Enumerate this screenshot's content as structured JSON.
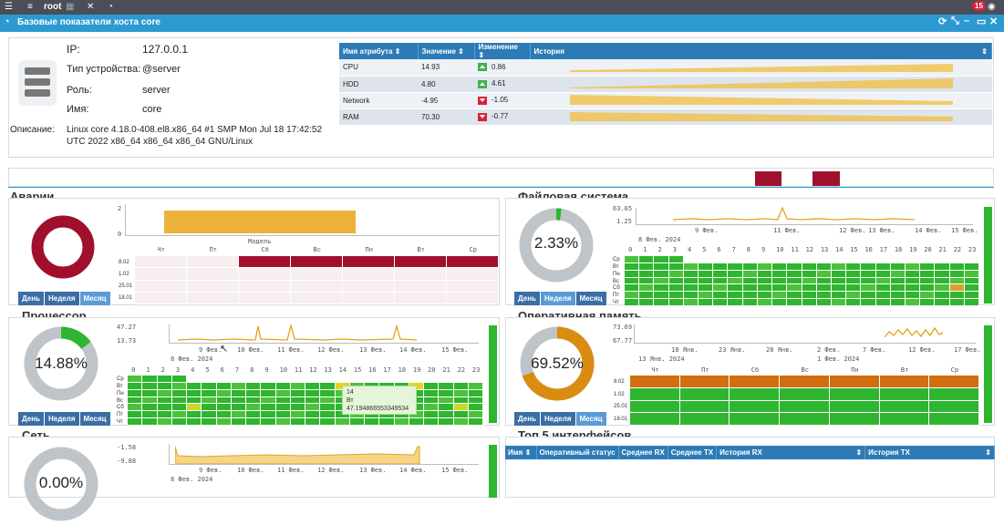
{
  "topbar": {
    "user": "root",
    "notif_count": "15"
  },
  "window": {
    "title": "Базовые показатели хоста core"
  },
  "host": {
    "ip_label": "IP:",
    "ip": "127.0.0.1",
    "type_label": "Тип устройства:",
    "type": "@server",
    "role_label": "Роль:",
    "role": "server",
    "name_label": "Имя:",
    "name": "core",
    "desc_label": "Описание:",
    "desc_line1": "Linux core 4.18.0-408.el8.x86_64 #1 SMP Mon Jul 18 17:42:52",
    "desc_line2": "UTC 2022 x86_64 x86_64 x86_64 GNU/Linux"
  },
  "attr_table": {
    "headers": [
      "Имя атрибута",
      "Значение",
      "Изменение",
      "История"
    ],
    "rows": [
      {
        "name": "CPU",
        "value": "14.93",
        "change": "0.86",
        "dir": "up"
      },
      {
        "name": "HDD",
        "value": "4.80",
        "change": "4.61",
        "dir": "up"
      },
      {
        "name": "Network",
        "value": "-4.95",
        "change": "-1.05",
        "dir": "down"
      },
      {
        "name": "RAM",
        "value": "70.30",
        "change": "-0.77",
        "dir": "down"
      }
    ]
  },
  "periods": {
    "day": "День",
    "week": "Неделя",
    "month": "Месяц"
  },
  "alarms": {
    "title": "Аварии",
    "legend": "Модель",
    "y_ticks": [
      "2",
      "0"
    ],
    "days": [
      "Чт",
      "Пт",
      "Сб",
      "Вс",
      "Пн",
      "Вт",
      "Ср"
    ],
    "rows": [
      "8.02",
      "1.02",
      "25.01",
      "18.01"
    ]
  },
  "fs": {
    "title": "Файловая система",
    "percent": "2.33%",
    "percent_value": 2.33,
    "y_ticks": [
      "63.65",
      "1.25"
    ],
    "x_ticks": [
      "9 Фев.",
      "11 Фев.",
      "13 Фев.",
      "15 Фев."
    ],
    "x_ticks2": [
      "8 Фев. 2024",
      "12 Фев.",
      "14 Фев."
    ],
    "hours": [
      "0",
      "1",
      "2",
      "3",
      "4",
      "5",
      "6",
      "7",
      "8",
      "9",
      "10",
      "11",
      "12",
      "13",
      "14",
      "15",
      "16",
      "17",
      "18",
      "19",
      "20",
      "21",
      "22",
      "23"
    ],
    "rows": [
      "Ср",
      "Вт",
      "Пн",
      "Вс",
      "Сб",
      "Пт",
      "Чт"
    ]
  },
  "cpu": {
    "title": "Процессор",
    "percent": "14.88%",
    "percent_value": 14.88,
    "y_ticks": [
      "47.27",
      "13.73"
    ],
    "x_ticks": [
      "9 Фев.",
      "10 Фев.",
      "11 Фев.",
      "12 Фев.",
      "13 Фев.",
      "14 Фев.",
      "15 Фев."
    ],
    "x_sub": "8 Фев. 2024",
    "hours": [
      "0",
      "1",
      "2",
      "3",
      "4",
      "5",
      "6",
      "7",
      "8",
      "9",
      "10",
      "11",
      "12",
      "13",
      "14",
      "15",
      "16",
      "17",
      "18",
      "19",
      "20",
      "21",
      "22",
      "23"
    ],
    "rows": [
      "Ср",
      "Вт",
      "Пн",
      "Вс",
      "Сб",
      "Пт",
      "Чт"
    ],
    "tooltip": {
      "l1": "14",
      "l2": "Вт",
      "l3": "47.194866553349534"
    }
  },
  "ram": {
    "title": "Оперативная память",
    "percent": "69.52%",
    "percent_value": 69.52,
    "y_ticks": [
      "73.69",
      "67.77"
    ],
    "x_ticks": [
      "18 Янв.",
      "23 Янв.",
      "28 Янв.",
      "2 Фев.",
      "7 Фев.",
      "12 Фев.",
      "17 Фев."
    ],
    "x_sub": "13 Янв. 2024",
    "x_sub2": "1 Фев. 2024",
    "days": [
      "Чт",
      "Пт",
      "Сб",
      "Вс",
      "Пн",
      "Вт",
      "Ср"
    ],
    "rows": [
      "8.02",
      "1.02",
      "25.01",
      "18.01"
    ]
  },
  "net": {
    "title": "Сеть",
    "percent": "0.00%",
    "percent_value": 0,
    "y_ticks": [
      "-1.58",
      "-9.88"
    ],
    "x_ticks": [
      "9 Фев.",
      "10 Фев.",
      "11 Фев.",
      "12 Фев.",
      "13 Фев.",
      "14 Фев.",
      "15 Фев."
    ],
    "x_sub": "8 Фев. 2024"
  },
  "top5": {
    "title": "Топ 5 интерфейсов",
    "headers": [
      "Имя",
      "Оперативный статус",
      "Среднее RX",
      "Среднее TX",
      "История RX",
      "История TX"
    ]
  },
  "colors": {
    "accent": "#2c9ad1",
    "red": "#a0102c",
    "green": "#2fb52f",
    "orange": "#d98c10",
    "gold": "#f0c04a"
  }
}
